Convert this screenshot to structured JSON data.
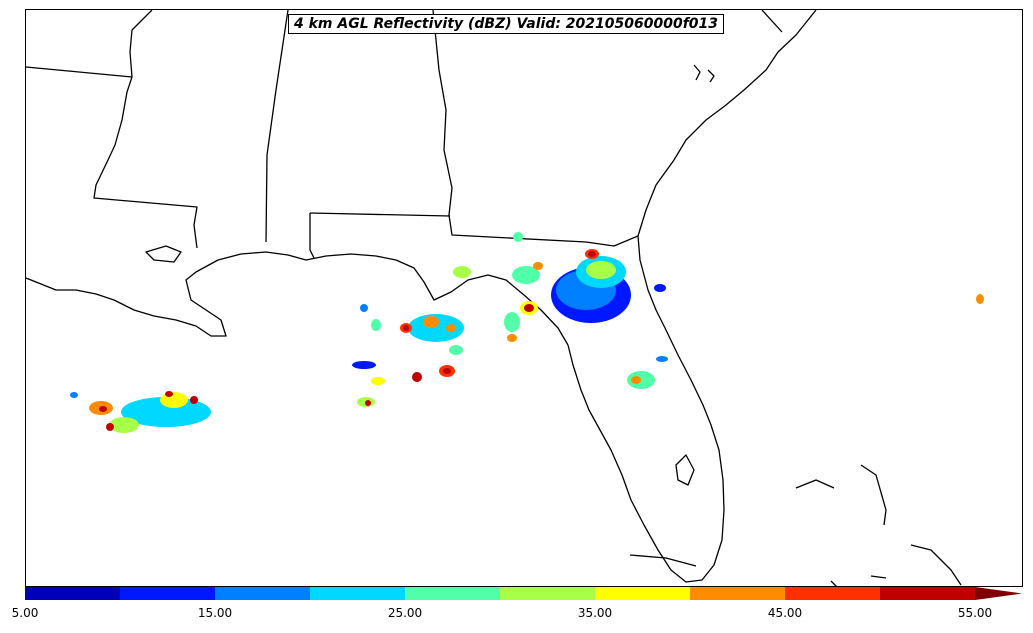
{
  "map": {
    "title": "4 km AGL Reflectivity (dBZ) Valid: 202105060000f013",
    "region": "Florida and northern Gulf of Mexico",
    "field": "reflectivity"
  },
  "colorbar": {
    "ticks": [
      "5.00",
      "15.00",
      "25.00",
      "35.00",
      "45.00",
      "55.00"
    ],
    "colors": [
      "#0000b8",
      "#0018ff",
      "#0080ff",
      "#00d8ff",
      "#50ffa8",
      "#a8ff48",
      "#ffff00",
      "#ff8c00",
      "#ff3000",
      "#c00000"
    ],
    "extend_color": "#800000",
    "extend": "max"
  }
}
